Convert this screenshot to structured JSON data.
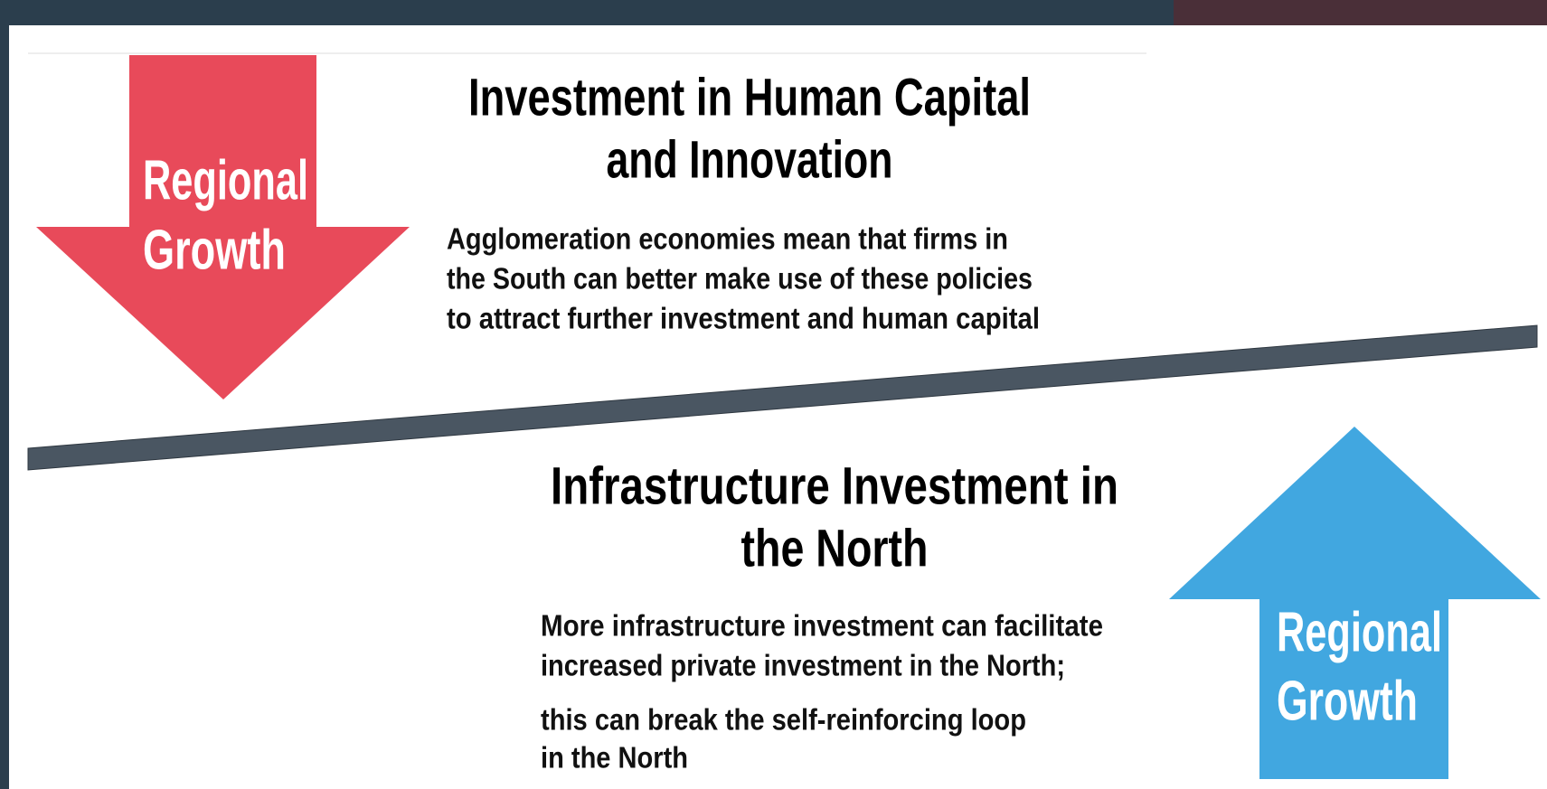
{
  "top_section": {
    "arrow_label": [
      "Regional",
      "Growth"
    ],
    "title": [
      "Investment in Human Capital",
      "and Innovation"
    ],
    "paragraph": [
      "Agglomeration economies mean that firms  in",
      "the South can better make use of these policies",
      "to attract further investment and human capital"
    ]
  },
  "bottom_section": {
    "arrow_label": [
      "Regional",
      "Growth"
    ],
    "title": [
      "Infrastructure Investment in",
      "the North"
    ],
    "paragraph": [
      "More infrastructure investment can facilitate",
      "increased private investment in the North;",
      "this can break the self-reinforcing loop",
      "in the North"
    ]
  }
}
